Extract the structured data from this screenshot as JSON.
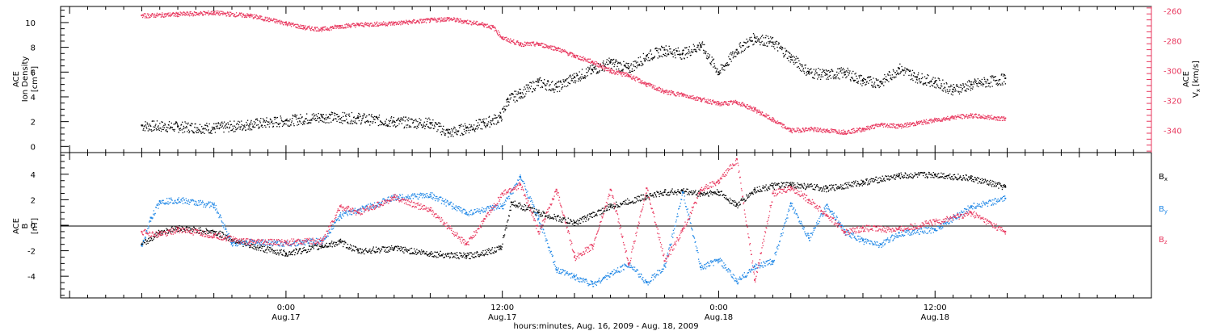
{
  "chart_data": [
    {
      "type": "scatter",
      "panel": "top",
      "ylabel_left": [
        "ACE",
        "Ion Density",
        "[cm⁻³]"
      ],
      "ylabel_right": [
        "ACE",
        "V",
        "x",
        "[km/s]"
      ],
      "ylim_left": [
        -0.5,
        11.3
      ],
      "yticks_left": [
        0,
        2,
        4,
        6,
        8,
        10
      ],
      "ylim_right": [
        -355,
        -257
      ],
      "yticks_right": [
        -260,
        -280,
        -300,
        -320,
        -340
      ],
      "series": [
        {
          "axis": "left",
          "color": "#000000",
          "x_hours": [
            -8,
            -6,
            -4,
            -2,
            0,
            2,
            4,
            6,
            8,
            9,
            10,
            11,
            11.9,
            12.3,
            13,
            14,
            15,
            16,
            17,
            18,
            19,
            20,
            21,
            22,
            23,
            24,
            25,
            26,
            27,
            28,
            29,
            30,
            31,
            32,
            33,
            34,
            35,
            36,
            37,
            38,
            39.9
          ],
          "values": [
            1.7,
            1.6,
            1.5,
            1.8,
            2.1,
            2.4,
            2.3,
            2.0,
            1.9,
            1.1,
            1.5,
            1.9,
            2.4,
            3.8,
            4.3,
            5.2,
            4.8,
            5.6,
            6.2,
            6.8,
            6.3,
            7.3,
            7.8,
            7.5,
            8.2,
            6.0,
            7.8,
            8.8,
            8.4,
            7.2,
            6.0,
            5.8,
            6.0,
            5.3,
            5.2,
            6.3,
            5.6,
            5.2,
            4.6,
            5.0,
            5.5
          ]
        },
        {
          "axis": "right",
          "color": "#e8375e",
          "x_hours": [
            -8,
            -6,
            -4,
            -2,
            0,
            1,
            2,
            3,
            4,
            6,
            8,
            9,
            10,
            11,
            11.5,
            12,
            13,
            14,
            15,
            16,
            17,
            18,
            19,
            20,
            21,
            22,
            23,
            24,
            25,
            26,
            27,
            28,
            29,
            30,
            31,
            32,
            33,
            34,
            35,
            36,
            37,
            38,
            39.9
          ],
          "values": [
            -263,
            -262,
            -261,
            -263,
            -268,
            -271,
            -272,
            -270,
            -269,
            -268,
            -266,
            -265,
            -267,
            -269,
            -271,
            -278,
            -282,
            -282,
            -285,
            -290,
            -294,
            -300,
            -303,
            -309,
            -314,
            -316,
            -319,
            -322,
            -321,
            -326,
            -333,
            -340,
            -339,
            -340,
            -341,
            -339,
            -336,
            -337,
            -335,
            -333,
            -331,
            -330,
            -332
          ]
        }
      ]
    },
    {
      "type": "scatter",
      "panel": "bottom",
      "ylabel": [
        "ACE",
        "B",
        "[nT]"
      ],
      "ylim": [
        -5.7,
        5.7
      ],
      "yticks": [
        -4,
        -2,
        0,
        2,
        4
      ],
      "legend": [
        "B",
        "x",
        "B",
        "y",
        "B",
        "z"
      ],
      "series": [
        {
          "name": "Bx",
          "color": "#000000",
          "x_hours": [
            -8,
            -7,
            -6,
            -4,
            -2,
            0,
            2,
            3,
            4,
            6,
            8,
            10,
            11.9,
            12.5,
            14,
            16,
            18,
            20,
            21,
            22,
            23,
            24,
            25,
            26,
            27,
            28,
            30,
            32,
            34,
            36,
            38,
            39.9
          ],
          "values": [
            -1.5,
            -0.5,
            -0.2,
            -0.5,
            -1.6,
            -2.2,
            -1.6,
            -1.3,
            -2.0,
            -1.8,
            -2.2,
            -2.4,
            -1.8,
            1.8,
            1.0,
            0.2,
            1.5,
            2.3,
            2.6,
            2.7,
            2.5,
            2.6,
            1.6,
            2.8,
            3.1,
            3.2,
            2.9,
            3.4,
            3.9,
            4.0,
            3.7,
            3.0
          ]
        },
        {
          "name": "By",
          "color": "#1f87e6",
          "x_hours": [
            -8,
            -7.5,
            -7,
            -6,
            -4,
            -3,
            -2,
            0,
            2,
            3,
            4,
            6,
            8,
            10,
            12,
            13,
            14,
            15,
            16,
            17,
            18,
            19,
            20,
            21,
            22,
            23,
            24,
            25,
            26,
            27,
            28,
            29,
            30,
            31,
            32,
            33,
            34,
            36,
            38,
            39.9
          ],
          "values": [
            -1.6,
            0.6,
            1.9,
            2.0,
            1.6,
            -1.4,
            -1.3,
            -1.4,
            -1.2,
            0.8,
            1.2,
            2.2,
            2.4,
            1.0,
            1.5,
            3.8,
            0.5,
            -3.5,
            -4.0,
            -4.6,
            -3.8,
            -3.0,
            -4.5,
            -3.2,
            2.6,
            -3.3,
            -2.7,
            -4.4,
            -3.2,
            -2.8,
            1.7,
            -1.0,
            1.6,
            -0.5,
            -1.2,
            -1.5,
            -0.6,
            -0.3,
            1.5,
            2.1
          ]
        },
        {
          "name": "Bz",
          "color": "#e8375e",
          "x_hours": [
            -8,
            -7,
            -6,
            -4,
            -2,
            0,
            2,
            3,
            4,
            6,
            8,
            10,
            11,
            12,
            13,
            14,
            15,
            16,
            17,
            18,
            19,
            20,
            21,
            22,
            23,
            24,
            25,
            26,
            27,
            28,
            29,
            30,
            31,
            32,
            34,
            36,
            38,
            39.9
          ],
          "values": [
            -0.5,
            -0.7,
            -0.3,
            -0.8,
            -1.3,
            -1.3,
            -1.2,
            1.5,
            1.0,
            2.2,
            1.2,
            -1.5,
            0.5,
            2.5,
            3.2,
            -0.5,
            2.8,
            -2.5,
            -1.6,
            2.8,
            -3.0,
            2.9,
            -2.8,
            -0.3,
            2.8,
            3.5,
            5.2,
            -4.3,
            2.5,
            3.0,
            2.0,
            0.8,
            -0.5,
            -0.2,
            -0.3,
            0.3,
            1.0,
            -0.5
          ]
        }
      ]
    }
  ],
  "x_axis": {
    "xlim_hours": [
      -12.5,
      48
    ],
    "major_ticks": [
      {
        "hour": 0,
        "time": "0:00",
        "date": "Aug.17"
      },
      {
        "hour": 12,
        "time": "12:00",
        "date": "Aug.17"
      },
      {
        "hour": 24,
        "time": "0:00",
        "date": "Aug.18"
      },
      {
        "hour": 36,
        "time": "12:00",
        "date": "Aug.18"
      }
    ],
    "xlabel": "hours:minutes, Aug. 16, 2009 - Aug. 18, 2009"
  },
  "colors": {
    "black": "#000000",
    "blue": "#1f87e6",
    "red": "#e8375e"
  }
}
